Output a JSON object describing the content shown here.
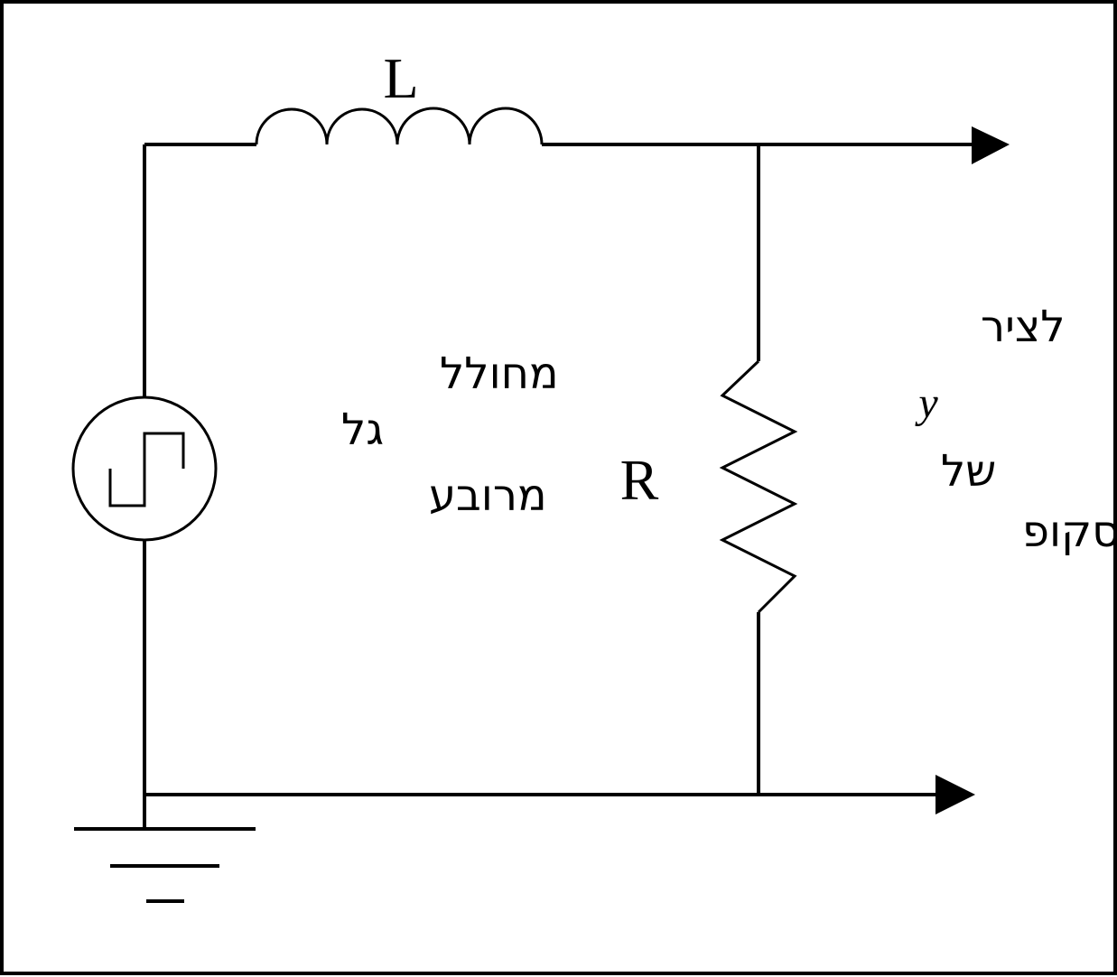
{
  "circuit": {
    "inductor_label": "L",
    "resistor_label": "R",
    "source_label_lines": [
      "מחולל",
      "גל",
      "מרובע"
    ],
    "scope_label_lines": [
      "לציר",
      "y",
      "של",
      "הסקופ"
    ]
  },
  "icons": {
    "source": "square-wave-source-icon",
    "ground": "ground-icon",
    "inductor": "inductor-icon",
    "resistor": "resistor-icon"
  },
  "colors": {
    "line": "#000000",
    "background": "#ffffff"
  }
}
